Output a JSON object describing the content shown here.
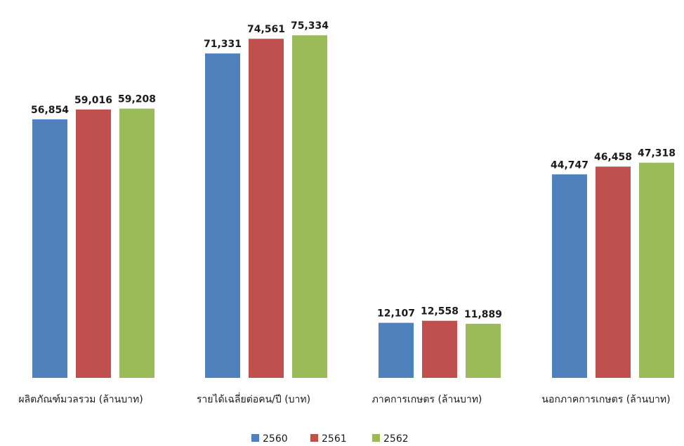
{
  "chart_data": {
    "type": "bar",
    "title": "",
    "xlabel": "",
    "ylabel": "",
    "categories": [
      "ผลิตภัณฑ์มวลรวม (ล้านบาท)",
      "รายได้เฉลี่ยต่อคน/ปี (บาท)",
      "ภาคการเกษตร (ล้านบาท)",
      "นอกภาคการเกษตร (ล้านบาท)"
    ],
    "series": [
      {
        "name": "2560",
        "color": "#4F81BD",
        "values": [
          56854,
          71331,
          12107,
          44747
        ]
      },
      {
        "name": "2561",
        "color": "#C0504D",
        "values": [
          59016,
          74561,
          12558,
          46458
        ]
      },
      {
        "name": "2562",
        "color": "#9BBB59",
        "values": [
          59208,
          75334,
          11889,
          47318
        ]
      }
    ],
    "data_labels": [
      [
        "56,854",
        "71,331",
        "12,107",
        "44,747"
      ],
      [
        "59,016",
        "74,561",
        "12,558",
        "46,458"
      ],
      [
        "59,208",
        "75,334",
        "11,889",
        "47,318"
      ]
    ],
    "ylim": [
      0,
      80000
    ],
    "grid": false,
    "legend": "bottom"
  }
}
